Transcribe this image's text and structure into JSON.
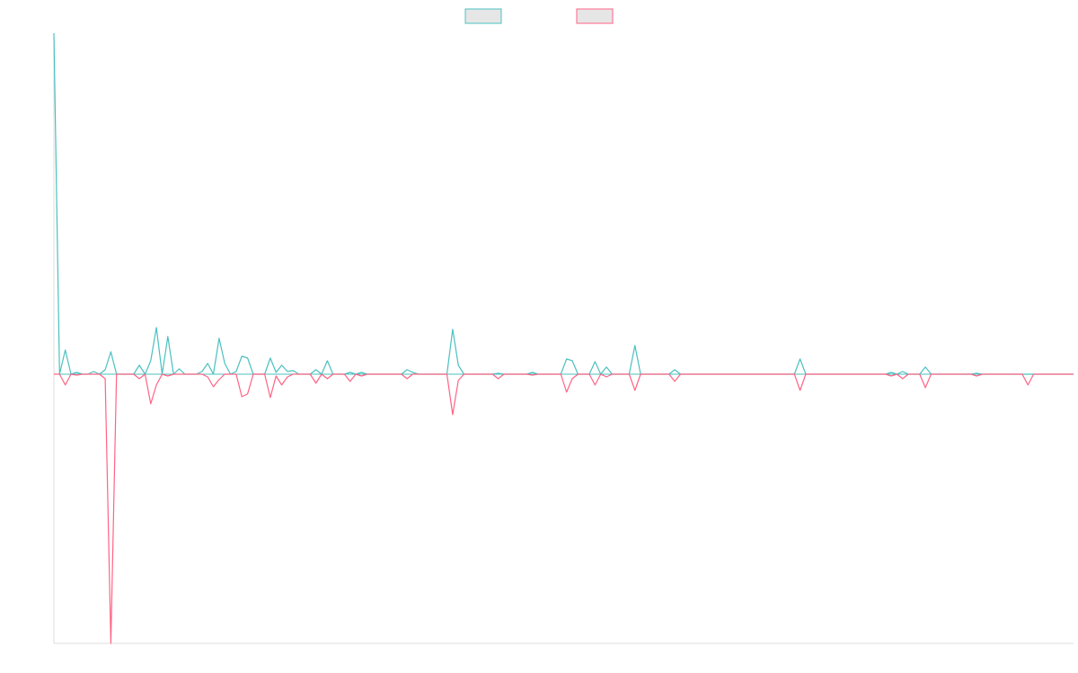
{
  "chart_data": {
    "type": "line",
    "ylim": [
      -300,
      380
    ],
    "x_count": 180,
    "legend": {
      "position": "top-center",
      "items": [
        {
          "label": "",
          "color": "#4bc0c0"
        },
        {
          "label": "",
          "color": "#ff6384"
        }
      ]
    },
    "grid": false,
    "series": [
      {
        "color": "#4bc0c0",
        "values": [
          380,
          0,
          27,
          0,
          0,
          0,
          0,
          0,
          0,
          0,
          8,
          0,
          25,
          0,
          0,
          0,
          0,
          0,
          0,
          0,
          8,
          0,
          0,
          0,
          0,
          15,
          0,
          0,
          52,
          0,
          0,
          0,
          0,
          0,
          0,
          0,
          0,
          0,
          0,
          0,
          0,
          0,
          0,
          12,
          0,
          42,
          10,
          0,
          0,
          0,
          0,
          20,
          0,
          0,
          0,
          0,
          0,
          0,
          0,
          0,
          18,
          0,
          0,
          0,
          0,
          10,
          0,
          0,
          0,
          0,
          0,
          0,
          0,
          0,
          0,
          0,
          0,
          0,
          0,
          0,
          0,
          0,
          0,
          0,
          0,
          0,
          0,
          0,
          0,
          0,
          0,
          0,
          0,
          0,
          0,
          0,
          0,
          0,
          0,
          0,
          0,
          0,
          0,
          0,
          0,
          0,
          0,
          0,
          0,
          0,
          0,
          0,
          0,
          0,
          0,
          0,
          0,
          0,
          0,
          0,
          0,
          0,
          0,
          0,
          0,
          0,
          0,
          0,
          0,
          0,
          0,
          0,
          0,
          0,
          0,
          0,
          0,
          0,
          0,
          0,
          0,
          0,
          0,
          0,
          0,
          0,
          0,
          0,
          0,
          0,
          0,
          0,
          0,
          0,
          0,
          0,
          0,
          0,
          0,
          0,
          0,
          0,
          0,
          0,
          0,
          0,
          0,
          0,
          0,
          0,
          0,
          0,
          0,
          0,
          0,
          0,
          0,
          0,
          0,
          0
        ],
        "points": [
          [
            0,
            380
          ],
          [
            2,
            27
          ],
          [
            3,
            0
          ],
          [
            4,
            2
          ],
          [
            5,
            0
          ],
          [
            6,
            0
          ],
          [
            7,
            3
          ],
          [
            8,
            0
          ],
          [
            9,
            5
          ],
          [
            10,
            25
          ],
          [
            11,
            0
          ],
          [
            12,
            0
          ],
          [
            15,
            10
          ],
          [
            16,
            0
          ],
          [
            17,
            15
          ],
          [
            18,
            52
          ],
          [
            19,
            0
          ],
          [
            20,
            42
          ],
          [
            21,
            0
          ],
          [
            22,
            6
          ],
          [
            23,
            0
          ],
          [
            24,
            0
          ],
          [
            26,
            3
          ],
          [
            27,
            12
          ],
          [
            28,
            0
          ],
          [
            29,
            40
          ],
          [
            30,
            12
          ],
          [
            31,
            0
          ],
          [
            32,
            3
          ],
          [
            33,
            20
          ],
          [
            34,
            18
          ],
          [
            35,
            0
          ],
          [
            38,
            18
          ],
          [
            39,
            2
          ],
          [
            40,
            10
          ],
          [
            41,
            3
          ],
          [
            42,
            4
          ],
          [
            46,
            5
          ],
          [
            48,
            15
          ],
          [
            49,
            0
          ],
          [
            52,
            2
          ],
          [
            54,
            2
          ],
          [
            62,
            5
          ],
          [
            63,
            2
          ],
          [
            70,
            50
          ],
          [
            71,
            10
          ],
          [
            72,
            0
          ],
          [
            78,
            1
          ],
          [
            84,
            2
          ],
          [
            90,
            17
          ],
          [
            91,
            15
          ],
          [
            92,
            0
          ],
          [
            95,
            14
          ],
          [
            96,
            0
          ],
          [
            97,
            8
          ],
          [
            98,
            0
          ],
          [
            102,
            32
          ],
          [
            103,
            0
          ],
          [
            107,
            0
          ],
          [
            109,
            5
          ],
          [
            114,
            0
          ],
          [
            119,
            0
          ],
          [
            131,
            17
          ],
          [
            132,
            0
          ],
          [
            144,
            0
          ],
          [
            147,
            2
          ],
          [
            149,
            3
          ],
          [
            151,
            0
          ],
          [
            153,
            8
          ],
          [
            154,
            0
          ],
          [
            162,
            1
          ],
          [
            175,
            0
          ],
          [
            187,
            3
          ],
          [
            188,
            0
          ]
        ]
      },
      {
        "color": "#ff6384",
        "points": [
          [
            0,
            0
          ],
          [
            2,
            -12
          ],
          [
            3,
            0
          ],
          [
            4,
            -1
          ],
          [
            5,
            0
          ],
          [
            9,
            -5
          ],
          [
            10,
            -300
          ],
          [
            11,
            0
          ],
          [
            15,
            -5
          ],
          [
            16,
            0
          ],
          [
            17,
            -33
          ],
          [
            18,
            -12
          ],
          [
            19,
            0
          ],
          [
            20,
            -2
          ],
          [
            21,
            0
          ],
          [
            27,
            -3
          ],
          [
            28,
            -14
          ],
          [
            29,
            -6
          ],
          [
            30,
            0
          ],
          [
            33,
            -25
          ],
          [
            34,
            -22
          ],
          [
            35,
            0
          ],
          [
            38,
            -26
          ],
          [
            39,
            -2
          ],
          [
            40,
            -12
          ],
          [
            41,
            -3
          ],
          [
            42,
            0
          ],
          [
            46,
            -10
          ],
          [
            48,
            -5
          ],
          [
            49,
            0
          ],
          [
            52,
            -8
          ],
          [
            54,
            -2
          ],
          [
            62,
            -5
          ],
          [
            63,
            0
          ],
          [
            70,
            -45
          ],
          [
            71,
            -7
          ],
          [
            72,
            0
          ],
          [
            78,
            -5
          ],
          [
            84,
            -1
          ],
          [
            90,
            -20
          ],
          [
            91,
            -5
          ],
          [
            92,
            0
          ],
          [
            95,
            -12
          ],
          [
            96,
            0
          ],
          [
            97,
            -3
          ],
          [
            98,
            0
          ],
          [
            102,
            -18
          ],
          [
            103,
            0
          ],
          [
            109,
            -8
          ],
          [
            114,
            0
          ],
          [
            119,
            0
          ],
          [
            131,
            -18
          ],
          [
            132,
            0
          ],
          [
            147,
            -2
          ],
          [
            149,
            -5
          ],
          [
            151,
            0
          ],
          [
            153,
            -15
          ],
          [
            154,
            0
          ],
          [
            162,
            -2
          ],
          [
            171,
            -12
          ],
          [
            172,
            0
          ],
          [
            187,
            -3
          ],
          [
            188,
            0
          ]
        ]
      }
    ]
  }
}
